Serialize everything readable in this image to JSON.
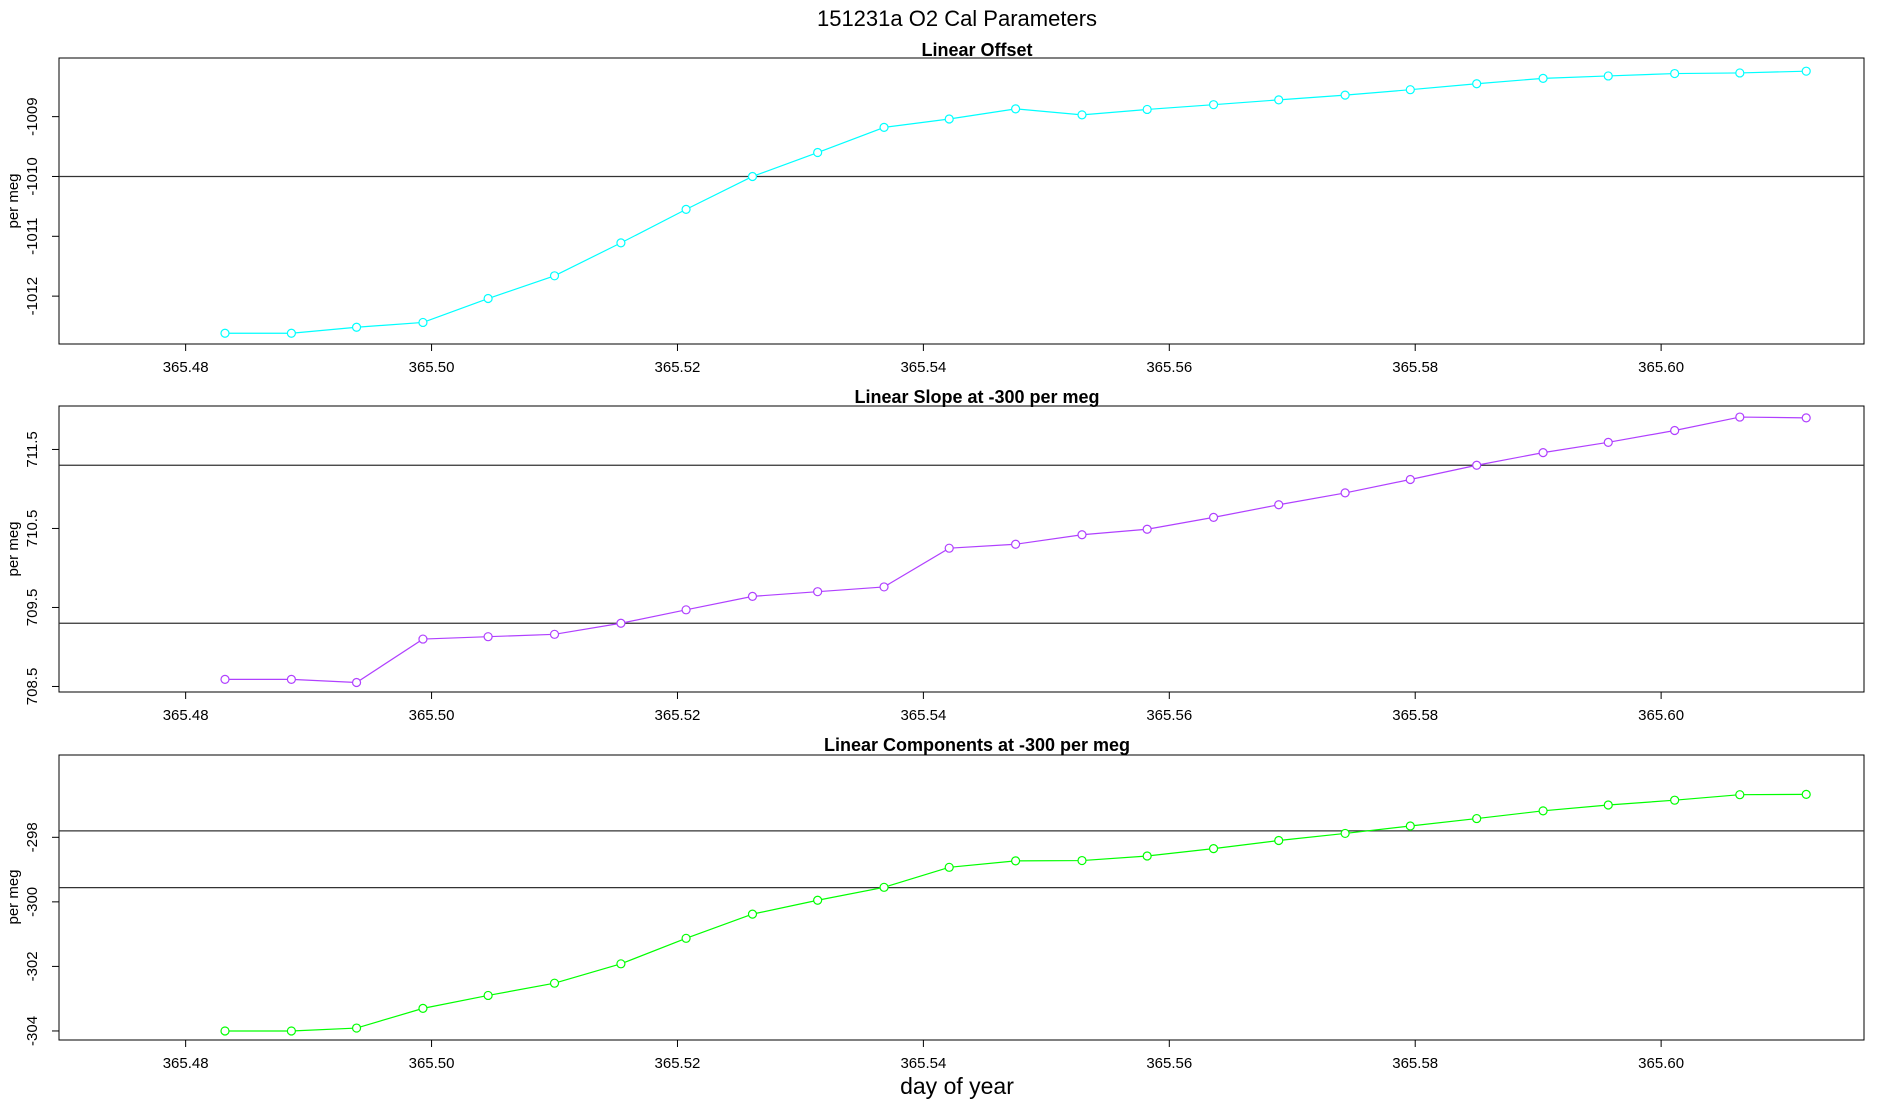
{
  "title": "151231a   O2 Cal Parameters",
  "xlabel": "day of year",
  "x_ticks": [
    365.48,
    365.5,
    365.52,
    365.54,
    365.56,
    365.58,
    365.6
  ],
  "x_tick_labels": [
    "365.48",
    "365.50",
    "365.52",
    "365.54",
    "365.56",
    "365.58",
    "365.60"
  ],
  "xlim": [
    365.4697,
    365.6165
  ],
  "chart_data": [
    {
      "type": "line",
      "title": "Linear Offset",
      "ylabel": "per meg",
      "color": "#00ffff",
      "ylim": [
        -1012.8,
        -1008.02
      ],
      "y_ticks": [
        -1012,
        -1011,
        -1010,
        -1009
      ],
      "y_tick_labels": [
        "-1012",
        "-1011",
        "-1010",
        "-1009"
      ],
      "ref_lines": [
        -1010.0
      ],
      "x": [
        365.4832,
        365.4886,
        365.4939,
        365.4993,
        365.5046,
        365.51,
        365.5154,
        365.5207,
        365.5261,
        365.5314,
        365.5368,
        365.5421,
        365.5475,
        365.5529,
        365.5582,
        365.5636,
        365.5689,
        365.5743,
        365.5796,
        365.585,
        365.5904,
        365.5957,
        365.6011,
        365.6064,
        365.6118
      ],
      "y": [
        -1012.62,
        -1012.62,
        -1012.52,
        -1012.44,
        -1012.04,
        -1011.66,
        -1011.11,
        -1010.55,
        -1010.0,
        -1009.6,
        -1009.18,
        -1009.04,
        -1008.87,
        -1008.97,
        -1008.88,
        -1008.8,
        -1008.72,
        -1008.64,
        -1008.55,
        -1008.45,
        -1008.36,
        -1008.32,
        -1008.28,
        -1008.27,
        -1008.24
      ]
    },
    {
      "type": "line",
      "title": "Linear Slope at -300 per meg",
      "ylabel": "per meg",
      "color": "#b040ff",
      "ylim": [
        708.43,
        712.05
      ],
      "y_ticks": [
        708.5,
        709.5,
        710.5,
        711.5
      ],
      "y_tick_labels": [
        "708.5",
        "709.5",
        "710.5",
        "711.5"
      ],
      "ref_lines": [
        711.3,
        709.3
      ],
      "x": [
        365.4832,
        365.4886,
        365.4939,
        365.4993,
        365.5046,
        365.51,
        365.5154,
        365.5207,
        365.5261,
        365.5314,
        365.5368,
        365.5421,
        365.5475,
        365.5529,
        365.5582,
        365.5636,
        365.5689,
        365.5743,
        365.5796,
        365.585,
        365.5904,
        365.5957,
        365.6011,
        365.6064,
        365.6118
      ],
      "y": [
        708.59,
        708.59,
        708.55,
        709.1,
        709.13,
        709.16,
        709.3,
        709.47,
        709.64,
        709.7,
        709.76,
        710.25,
        710.3,
        710.42,
        710.49,
        710.64,
        710.8,
        710.95,
        711.12,
        711.3,
        711.46,
        711.59,
        711.74,
        711.91,
        711.9
      ]
    },
    {
      "type": "line",
      "title": "Linear Components at -300 per meg",
      "ylabel": "per meg",
      "color": "#00ff00",
      "ylim": [
        -304.28,
        -295.45
      ],
      "y_ticks": [
        -304,
        -302,
        -300,
        -298
      ],
      "y_tick_labels": [
        "-304",
        "-302",
        "-300",
        "-298"
      ],
      "ref_lines": [
        -297.8,
        -299.56
      ],
      "x": [
        365.4832,
        365.4886,
        365.4939,
        365.4993,
        365.5046,
        365.51,
        365.5154,
        365.5207,
        365.5261,
        365.5314,
        365.5368,
        365.5421,
        365.5475,
        365.5529,
        365.5582,
        365.5636,
        365.5689,
        365.5743,
        365.5796,
        365.585,
        365.5904,
        365.5957,
        365.6011,
        365.6064,
        365.6118
      ],
      "y": [
        -304.0,
        -304.0,
        -303.91,
        -303.3,
        -302.9,
        -302.52,
        -301.92,
        -301.13,
        -300.38,
        -299.95,
        -299.55,
        -298.93,
        -298.73,
        -298.72,
        -298.58,
        -298.35,
        -298.1,
        -297.88,
        -297.65,
        -297.42,
        -297.18,
        -297.0,
        -296.85,
        -296.68,
        -296.67
      ]
    }
  ]
}
